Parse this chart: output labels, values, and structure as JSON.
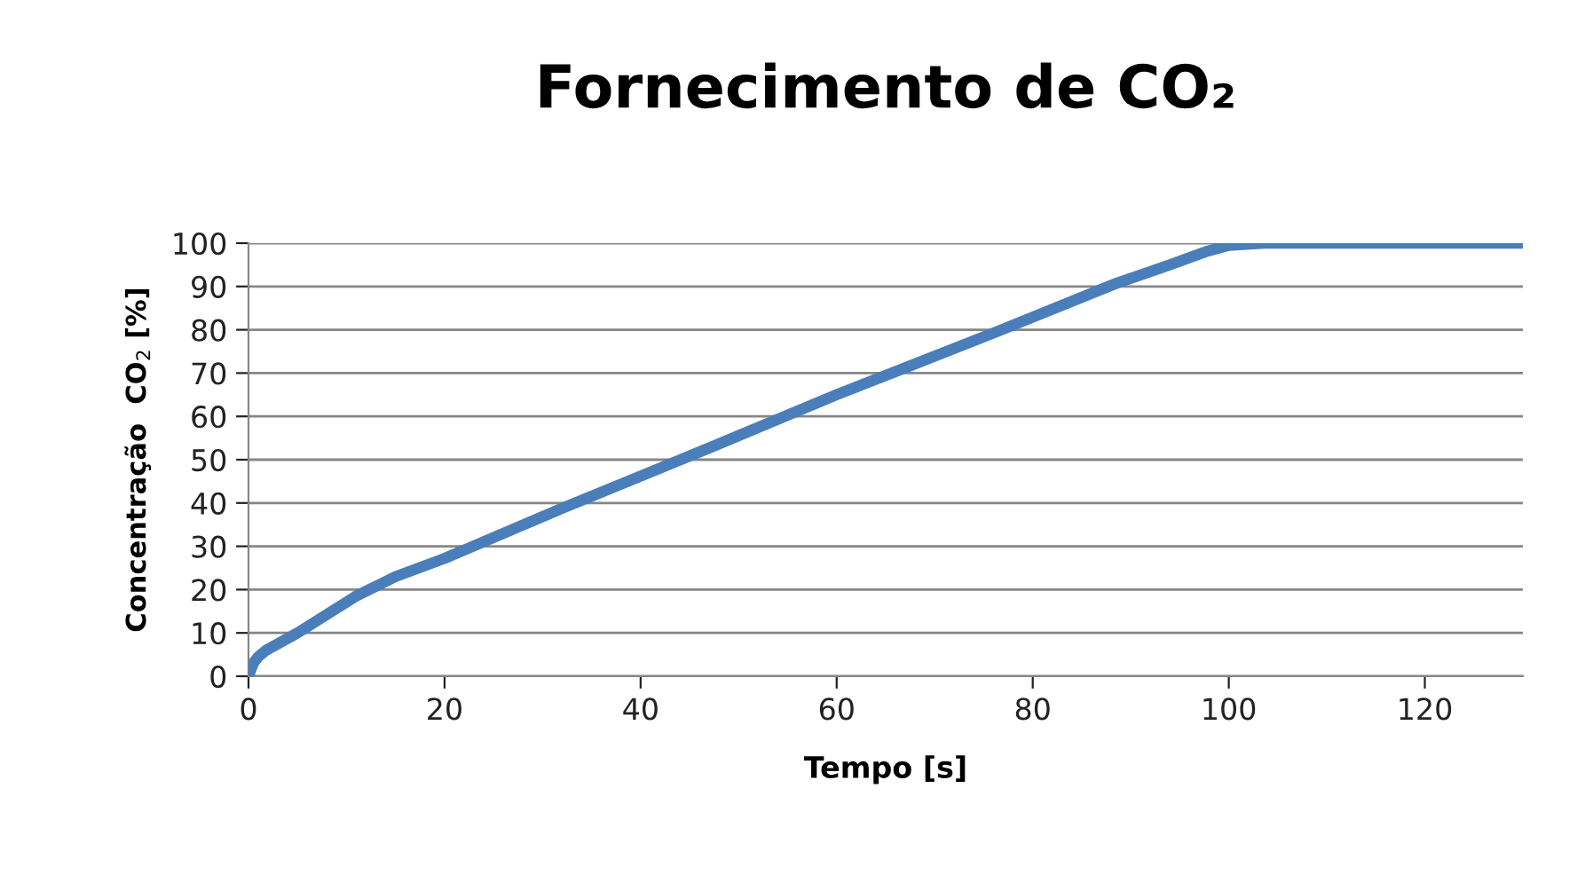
{
  "chart_data": {
    "type": "line",
    "title": "Fornecimento de CO₂",
    "xlabel": "Tempo [s]",
    "ylabel": "Concentração  CO$_{2}$ [%]",
    "x": [
      0,
      0.5,
      1,
      1.8,
      5,
      10.9,
      15,
      20,
      32,
      47.3,
      60,
      76.4,
      88.5,
      94,
      97.6,
      100,
      103.6,
      107.9,
      130
    ],
    "series": [
      {
        "color": "#4a7ebb",
        "values": [
          0,
          3,
          4.5,
          6,
          10,
          18.4,
          23,
          27.2,
          38.8,
          53,
          65,
          79.6,
          90.7,
          95,
          98,
          99.5,
          100,
          100,
          100
        ]
      }
    ],
    "xlim": [
      0,
      130
    ],
    "xticks": [
      0,
      20,
      40,
      60,
      80,
      100,
      120
    ],
    "ylim": [
      0,
      100
    ],
    "yticks": [
      0,
      10,
      20,
      30,
      40,
      50,
      60,
      70,
      80,
      90,
      100
    ],
    "grid": "y",
    "legend": false,
    "marker": "none",
    "line_style": "solid"
  }
}
